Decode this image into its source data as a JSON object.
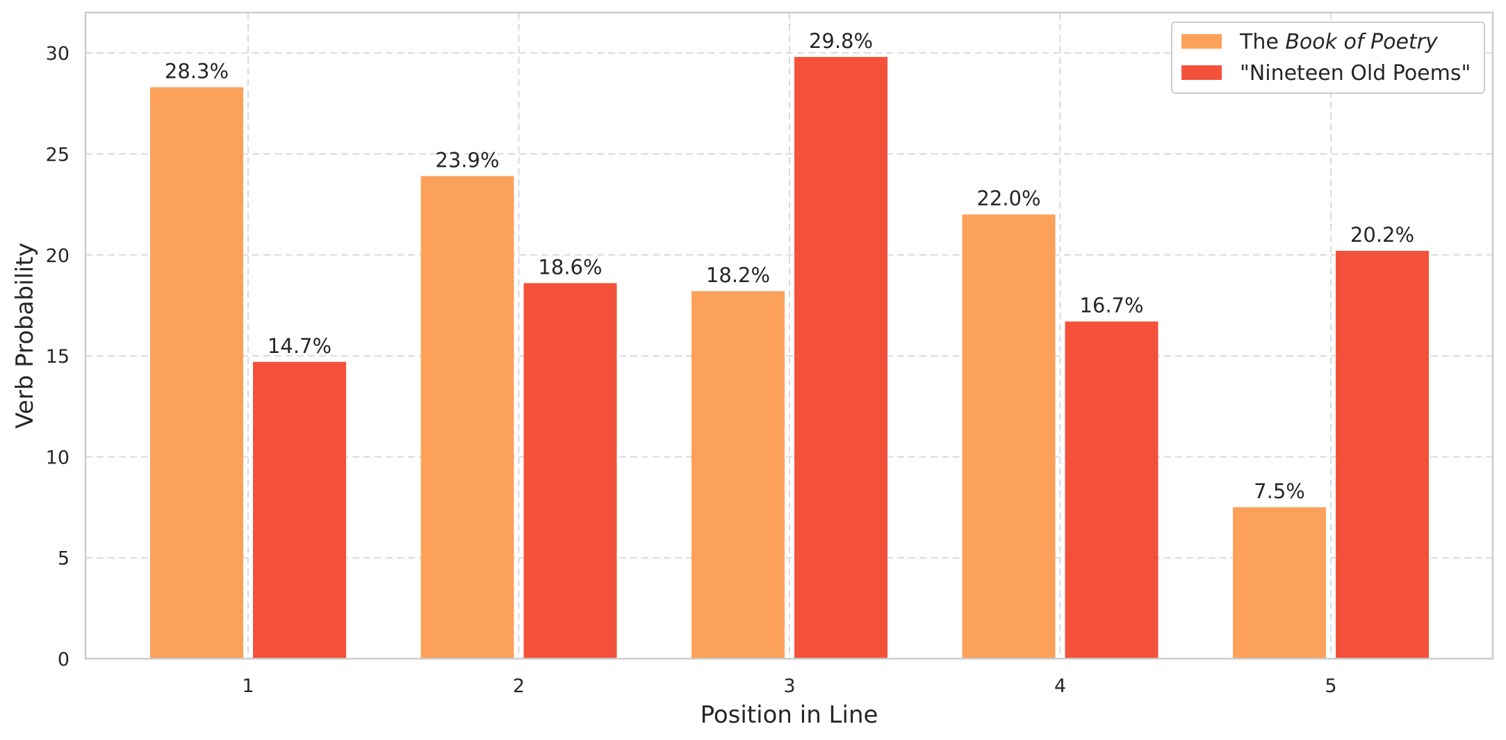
{
  "chart_data": {
    "type": "bar",
    "title": "",
    "xlabel": "Position in Line",
    "ylabel": "Verb Probability",
    "categories": [
      "1",
      "2",
      "3",
      "4",
      "5"
    ],
    "ylim": [
      0,
      32
    ],
    "yticks": [
      0,
      5,
      10,
      15,
      20,
      25,
      30
    ],
    "grid": true,
    "legend_position": "top-right",
    "series": [
      {
        "name_prefix": "The ",
        "name_italic": "Book of Poetry",
        "color": "#fca15a",
        "values": [
          28.3,
          23.9,
          18.2,
          22.0,
          7.5
        ],
        "labels": [
          "28.3%",
          "23.9%",
          "18.2%",
          "22.0%",
          "7.5%"
        ]
      },
      {
        "name_prefix": "\"Nineteen Old Poems\"",
        "name_italic": "",
        "color": "#f4513b",
        "values": [
          14.7,
          18.6,
          29.8,
          16.7,
          20.2
        ],
        "labels": [
          "14.7%",
          "18.6%",
          "29.8%",
          "16.7%",
          "20.2%"
        ]
      }
    ]
  }
}
